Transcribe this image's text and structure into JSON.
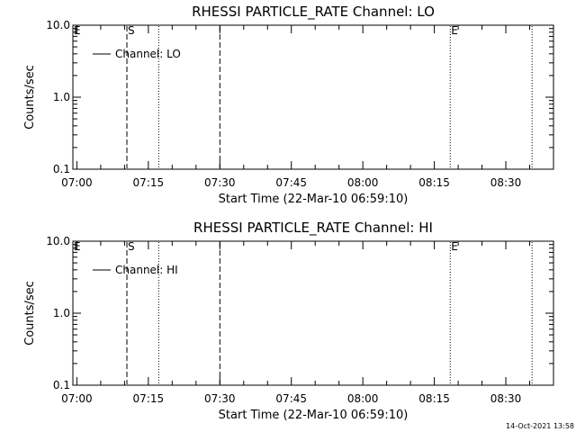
{
  "footer": {
    "date": "14-Oct-2021 13:58"
  },
  "colors": {
    "background": "#ffffff",
    "foreground": "#000000"
  },
  "chart_data": [
    {
      "type": "line",
      "title": "RHESSI PARTICLE_RATE Channel: LO",
      "xlabel": "Start Time (22-Mar-10 06:59:10)",
      "ylabel": "Counts/sec",
      "yscale": "log",
      "ylim": [
        0.1,
        10.0
      ],
      "xlim": [
        "06:59:10",
        "08:40:00"
      ],
      "x_ticks": [
        "07:00",
        "07:15",
        "07:30",
        "07:45",
        "08:00",
        "08:15",
        "08:30"
      ],
      "y_ticks": [
        "10.0",
        "1.0",
        "0.1"
      ],
      "legend": {
        "entries": [
          "Channel: LO"
        ],
        "placement": "top-left"
      },
      "series": [
        {
          "name": "Channel: LO",
          "x": [],
          "y": []
        }
      ],
      "markers": [
        {
          "time": "06:59:10",
          "label": "E",
          "style": "none"
        },
        {
          "time": "07:10:30",
          "label": "S",
          "style": "dashed"
        },
        {
          "time": "07:17:10",
          "label": "",
          "style": "dotted"
        },
        {
          "time": "07:30:00",
          "label": "",
          "style": "dashed"
        },
        {
          "time": "08:18:20",
          "label": "E",
          "style": "dotted"
        },
        {
          "time": "08:35:30",
          "label": "",
          "style": "dotted"
        }
      ]
    },
    {
      "type": "line",
      "title": "RHESSI PARTICLE_RATE Channel: HI",
      "xlabel": "Start Time (22-Mar-10 06:59:10)",
      "ylabel": "Counts/sec",
      "yscale": "log",
      "ylim": [
        0.1,
        10.0
      ],
      "xlim": [
        "06:59:10",
        "08:40:00"
      ],
      "x_ticks": [
        "07:00",
        "07:15",
        "07:30",
        "07:45",
        "08:00",
        "08:15",
        "08:30"
      ],
      "y_ticks": [
        "10.0",
        "1.0",
        "0.1"
      ],
      "legend": {
        "entries": [
          "Channel: HI"
        ],
        "placement": "top-left"
      },
      "series": [
        {
          "name": "Channel: HI",
          "x": [],
          "y": []
        }
      ],
      "markers": [
        {
          "time": "06:59:10",
          "label": "E",
          "style": "none"
        },
        {
          "time": "07:10:30",
          "label": "S",
          "style": "dashed"
        },
        {
          "time": "07:17:10",
          "label": "",
          "style": "dotted"
        },
        {
          "time": "07:30:00",
          "label": "",
          "style": "dashed"
        },
        {
          "time": "08:18:20",
          "label": "E",
          "style": "dotted"
        },
        {
          "time": "08:35:30",
          "label": "",
          "style": "dotted"
        }
      ]
    }
  ]
}
